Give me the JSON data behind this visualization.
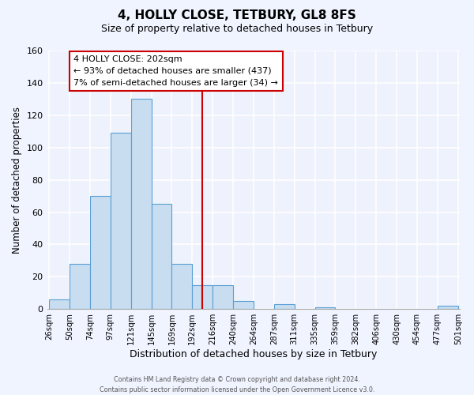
{
  "title": "4, HOLLY CLOSE, TETBURY, GL8 8FS",
  "subtitle": "Size of property relative to detached houses in Tetbury",
  "xlabel": "Distribution of detached houses by size in Tetbury",
  "ylabel": "Number of detached properties",
  "bin_labels": [
    "26sqm",
    "50sqm",
    "74sqm",
    "97sqm",
    "121sqm",
    "145sqm",
    "169sqm",
    "192sqm",
    "216sqm",
    "240sqm",
    "264sqm",
    "287sqm",
    "311sqm",
    "335sqm",
    "359sqm",
    "382sqm",
    "406sqm",
    "430sqm",
    "454sqm",
    "477sqm",
    "501sqm"
  ],
  "bar_heights": [
    6,
    28,
    70,
    109,
    130,
    65,
    28,
    15,
    15,
    5,
    0,
    3,
    0,
    1,
    0,
    0,
    0,
    0,
    0,
    2
  ],
  "bar_color": "#c8ddf0",
  "bar_edge_color": "#5a9fd4",
  "ylim": [
    0,
    160
  ],
  "yticks": [
    0,
    20,
    40,
    60,
    80,
    100,
    120,
    140,
    160
  ],
  "vline_x": 7.5,
  "vline_color": "#cc0000",
  "annotation_title": "4 HOLLY CLOSE: 202sqm",
  "annotation_line1": "← 93% of detached houses are smaller (437)",
  "annotation_line2": "7% of semi-detached houses are larger (34) →",
  "annotation_box_color": "#ffffff",
  "annotation_box_edge": "#cc0000",
  "footer1": "Contains HM Land Registry data © Crown copyright and database right 2024.",
  "footer2": "Contains public sector information licensed under the Open Government Licence v3.0."
}
